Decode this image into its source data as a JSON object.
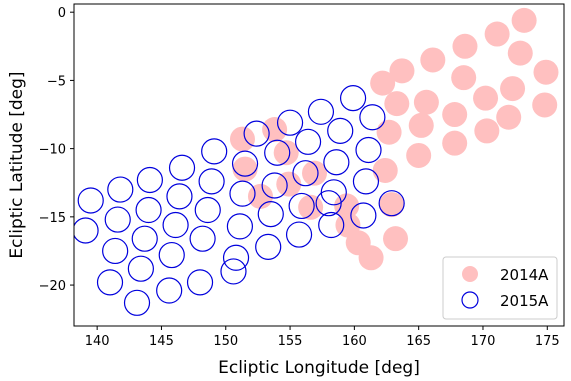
{
  "chart_data": {
    "type": "scatter",
    "xlabel": "Ecliptic Longitude [deg]",
    "ylabel": "Ecliptic Latitude [deg]",
    "xlim": [
      138.2,
      176.3
    ],
    "ylim": [
      -23.0,
      0.6
    ],
    "xticks": [
      140,
      145,
      150,
      155,
      160,
      165,
      170,
      175
    ],
    "xtick_labels": [
      "140",
      "145",
      "150",
      "155",
      "160",
      "165",
      "170",
      "175"
    ],
    "yticks": [
      0,
      -5,
      -10,
      -15,
      -20
    ],
    "ytick_labels": [
      "0",
      "−5",
      "−10",
      "−15",
      "−20"
    ],
    "grid": false,
    "legend_position": "lower-right",
    "series": [
      {
        "name": "2014A",
        "marker": "filled-circle",
        "color": "#ffc0c0",
        "points": [
          [
            173.2,
            -0.6
          ],
          [
            172.9,
            -3.0
          ],
          [
            171.1,
            -1.6
          ],
          [
            168.6,
            -2.5
          ],
          [
            166.1,
            -3.5
          ],
          [
            163.7,
            -4.3
          ],
          [
            162.2,
            -5.2
          ],
          [
            174.9,
            -4.4
          ],
          [
            172.3,
            -5.6
          ],
          [
            168.5,
            -4.8
          ],
          [
            165.6,
            -6.6
          ],
          [
            163.3,
            -6.7
          ],
          [
            174.8,
            -6.8
          ],
          [
            172.0,
            -7.7
          ],
          [
            170.2,
            -6.3
          ],
          [
            167.8,
            -7.5
          ],
          [
            165.2,
            -8.3
          ],
          [
            162.7,
            -8.8
          ],
          [
            170.3,
            -8.7
          ],
          [
            167.8,
            -9.6
          ],
          [
            165.0,
            -10.5
          ],
          [
            162.4,
            -11.6
          ],
          [
            151.3,
            -9.3
          ],
          [
            153.8,
            -8.6
          ],
          [
            151.5,
            -11.5
          ],
          [
            154.7,
            -10.3
          ],
          [
            156.9,
            -11.8
          ],
          [
            152.7,
            -13.5
          ],
          [
            154.9,
            -12.6
          ],
          [
            156.6,
            -14.3
          ],
          [
            159.4,
            -14.2
          ],
          [
            162.9,
            -14.1
          ],
          [
            159.5,
            -15.6
          ],
          [
            160.3,
            -16.9
          ],
          [
            163.2,
            -16.6
          ],
          [
            161.3,
            -18.0
          ]
        ]
      },
      {
        "name": "2015A",
        "marker": "open-circle",
        "color": "#0000dd",
        "points": [
          [
            159.9,
            -6.3
          ],
          [
            157.4,
            -7.3
          ],
          [
            155.0,
            -8.1
          ],
          [
            152.4,
            -8.9
          ],
          [
            161.4,
            -7.7
          ],
          [
            158.9,
            -8.7
          ],
          [
            156.4,
            -9.5
          ],
          [
            154.0,
            -10.3
          ],
          [
            151.5,
            -11.1
          ],
          [
            149.1,
            -10.2
          ],
          [
            146.6,
            -11.4
          ],
          [
            144.1,
            -12.3
          ],
          [
            141.8,
            -13.0
          ],
          [
            139.5,
            -13.8
          ],
          [
            161.1,
            -10.1
          ],
          [
            158.6,
            -11.0
          ],
          [
            156.2,
            -11.8
          ],
          [
            153.8,
            -12.7
          ],
          [
            151.3,
            -13.3
          ],
          [
            148.9,
            -12.4
          ],
          [
            146.4,
            -13.5
          ],
          [
            144.0,
            -14.5
          ],
          [
            141.6,
            -15.2
          ],
          [
            139.1,
            -16.0
          ],
          [
            160.9,
            -12.4
          ],
          [
            158.4,
            -13.2
          ],
          [
            155.9,
            -14.2
          ],
          [
            153.5,
            -14.8
          ],
          [
            151.1,
            -15.7
          ],
          [
            148.6,
            -14.5
          ],
          [
            146.1,
            -15.6
          ],
          [
            143.7,
            -16.6
          ],
          [
            141.4,
            -17.5
          ],
          [
            160.7,
            -14.9
          ],
          [
            158.2,
            -15.6
          ],
          [
            155.7,
            -16.3
          ],
          [
            153.3,
            -17.2
          ],
          [
            150.8,
            -18.0
          ],
          [
            148.2,
            -16.6
          ],
          [
            145.8,
            -17.8
          ],
          [
            143.4,
            -18.8
          ],
          [
            141.0,
            -19.8
          ],
          [
            158.0,
            -14.0
          ],
          [
            162.9,
            -14.0
          ],
          [
            150.6,
            -19.0
          ],
          [
            148.0,
            -19.8
          ],
          [
            145.6,
            -20.4
          ],
          [
            143.1,
            -21.3
          ]
        ]
      }
    ]
  }
}
